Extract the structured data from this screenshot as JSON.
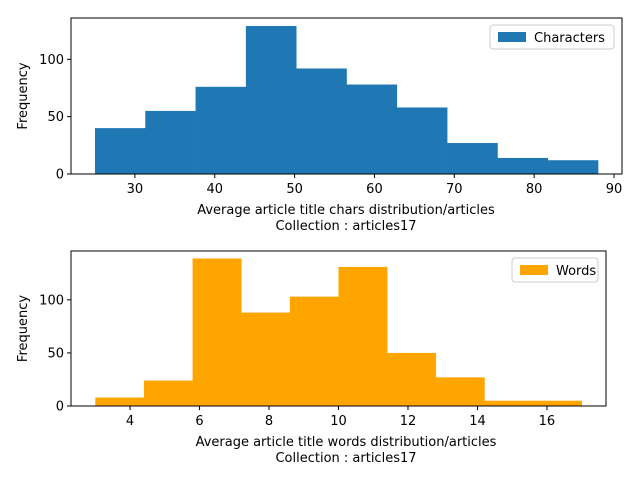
{
  "chart_data": [
    {
      "type": "histogram",
      "series": [
        {
          "name": "Characters",
          "color": "#1f77b4"
        }
      ],
      "bin_edges": [
        25,
        31.3,
        37.6,
        43.9,
        50.2,
        56.5,
        62.8,
        69.1,
        75.4,
        81.7,
        88
      ],
      "values": [
        40,
        55,
        76,
        129,
        92,
        78,
        58,
        27,
        14,
        12
      ],
      "xlim": [
        22,
        91
      ],
      "ylim": [
        0,
        136
      ],
      "xticks": [
        30,
        40,
        50,
        60,
        70,
        80,
        90
      ],
      "yticks": [
        0,
        50,
        100
      ],
      "xlabel": "Average article title chars distribution/articles",
      "xlabel2": "Collection : articles17",
      "ylabel": "Frequency",
      "legend_placement": "top-right"
    },
    {
      "type": "histogram",
      "series": [
        {
          "name": "Words",
          "color": "#ffa500"
        }
      ],
      "bin_edges": [
        3,
        4.4,
        5.8,
        7.2,
        8.6,
        10,
        11.4,
        12.8,
        14.2,
        15.6,
        17
      ],
      "values": [
        8,
        24,
        139,
        88,
        103,
        131,
        50,
        27,
        5,
        5
      ],
      "xlim": [
        2.3,
        17.7
      ],
      "ylim": [
        0,
        146
      ],
      "xticks": [
        4,
        6,
        8,
        10,
        12,
        14,
        16
      ],
      "yticks": [
        0,
        50,
        100
      ],
      "xlabel": "Average article title words distribution/articles",
      "xlabel2": "Collection : articles17",
      "ylabel": "Frequency",
      "legend_placement": "top-right"
    }
  ]
}
